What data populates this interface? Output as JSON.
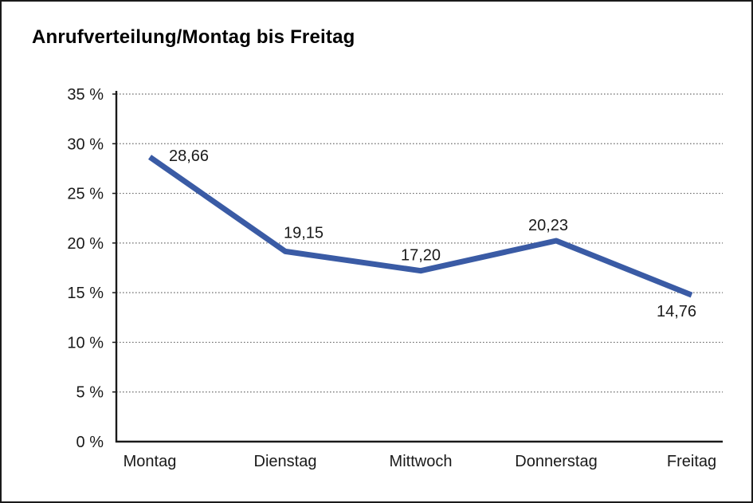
{
  "chart_data": {
    "type": "line",
    "title": "Anrufverteilung/Montag bis Freitag",
    "categories": [
      "Montag",
      "Dienstag",
      "Mittwoch",
      "Donnerstag",
      "Freitag"
    ],
    "values": [
      28.66,
      19.15,
      17.2,
      20.23,
      14.76
    ],
    "value_labels": [
      "28,66",
      "19,15",
      "17,20",
      "20,23",
      "14,76"
    ],
    "y_ticks": [
      "0 %",
      "5 %",
      "10 %",
      "15 %",
      "20 %",
      "25 %",
      "30 %",
      "35 %"
    ],
    "ylim": [
      0,
      35
    ],
    "y_tick_step": 5,
    "xlabel": "",
    "ylabel": "",
    "grid": "horizontal-dotted",
    "legend": "none",
    "line_color": "#3A5BA5"
  }
}
